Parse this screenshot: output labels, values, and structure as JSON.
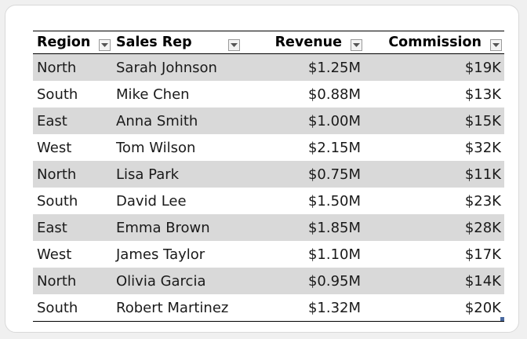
{
  "table": {
    "headers": {
      "region": "Region",
      "sales_rep": "Sales Rep",
      "revenue": "Revenue",
      "commission": "Commission"
    },
    "rows": [
      {
        "region": "North",
        "sales_rep": "Sarah Johnson",
        "revenue": "$1.25M",
        "commission": "$19K"
      },
      {
        "region": "South",
        "sales_rep": "Mike Chen",
        "revenue": "$0.88M",
        "commission": "$13K"
      },
      {
        "region": "East",
        "sales_rep": "Anna Smith",
        "revenue": "$1.00M",
        "commission": "$15K"
      },
      {
        "region": "West",
        "sales_rep": "Tom Wilson",
        "revenue": "$2.15M",
        "commission": "$32K"
      },
      {
        "region": "North",
        "sales_rep": "Lisa Park",
        "revenue": "$0.75M",
        "commission": "$11K"
      },
      {
        "region": "South",
        "sales_rep": "David Lee",
        "revenue": "$1.50M",
        "commission": "$23K"
      },
      {
        "region": "East",
        "sales_rep": "Emma Brown",
        "revenue": "$1.85M",
        "commission": "$28K"
      },
      {
        "region": "West",
        "sales_rep": "James Taylor",
        "revenue": "$1.10M",
        "commission": "$17K"
      },
      {
        "region": "North",
        "sales_rep": "Olivia Garcia",
        "revenue": "$0.95M",
        "commission": "$14K"
      },
      {
        "region": "South",
        "sales_rep": "Robert Martinez",
        "revenue": "$1.32M",
        "commission": "$20K"
      }
    ]
  },
  "icons": {
    "filter": "filter-dropdown-icon",
    "resize": "table-resize-handle-icon"
  },
  "colors": {
    "band": "#d9d9d9",
    "background": "#f0f0f0",
    "card": "#ffffff"
  }
}
